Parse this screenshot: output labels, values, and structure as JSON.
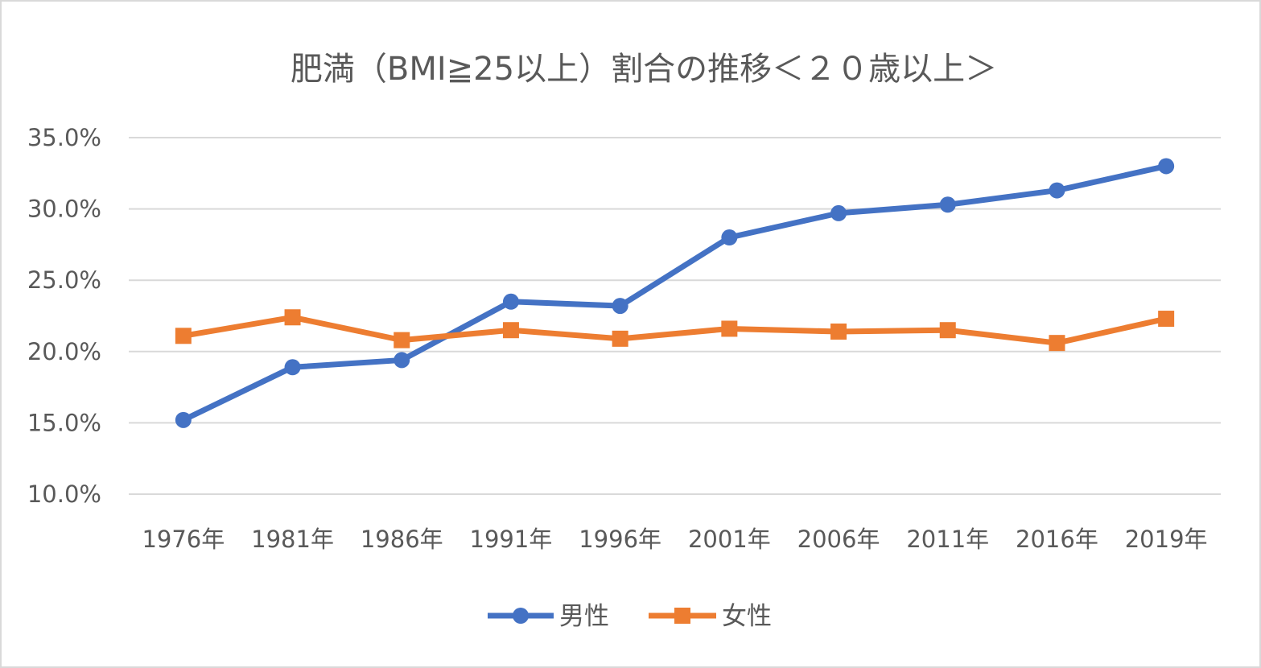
{
  "chart_data": {
    "type": "line",
    "title": "肥満（BMI≧25以上）割合の推移＜２０歳以上＞",
    "xlabel": "",
    "ylabel": "",
    "categories": [
      "1976年",
      "1981年",
      "1986年",
      "1991年",
      "1996年",
      "2001年",
      "2006年",
      "2011年",
      "2016年",
      "2019年"
    ],
    "ylim": [
      10.0,
      35.0
    ],
    "yticks": [
      10.0,
      15.0,
      20.0,
      25.0,
      30.0,
      35.0
    ],
    "ytick_labels": [
      "10.0%",
      "15.0%",
      "20.0%",
      "25.0%",
      "30.0%",
      "35.0%"
    ],
    "grid": true,
    "legend_position": "bottom",
    "series": [
      {
        "name": "男性",
        "marker": "circle",
        "color": "#4472c4",
        "values": [
          15.2,
          18.9,
          19.4,
          23.5,
          23.2,
          28.0,
          29.7,
          30.3,
          31.3,
          33.0
        ]
      },
      {
        "name": "女性",
        "marker": "square",
        "color": "#ed7d31",
        "values": [
          21.1,
          22.4,
          20.8,
          21.5,
          20.9,
          21.6,
          21.4,
          21.5,
          20.6,
          22.3
        ]
      }
    ]
  }
}
